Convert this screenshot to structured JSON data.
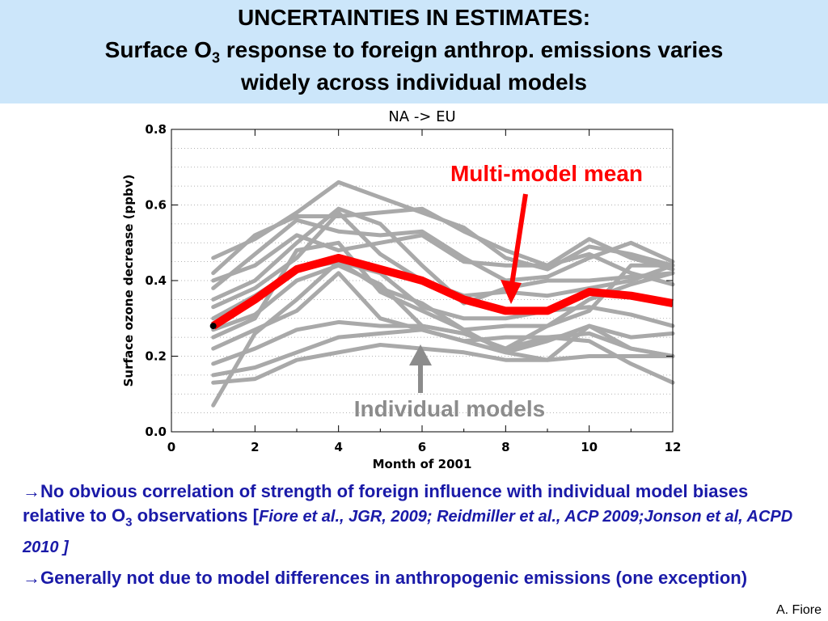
{
  "slide": {
    "title_line1": "UNCERTAINTIES IN ESTIMATES:",
    "title_line2_pre": "Surface O",
    "title_line2_sub": "3",
    "title_line2_post": " response to foreign anthrop. emissions varies",
    "title_line3": "widely across individual models",
    "bullet1_arrow": "→",
    "bullet1_text_a": "No obvious correlation of strength of foreign influence with individual model biases relative to O",
    "bullet1_sub": "3",
    "bullet1_text_b": " observations [",
    "bullet1_cite": "Fiore et al., JGR, 2009; Reidmiller et al., ACP 2009;Jonson et al, ACPD 2010 ]",
    "bullet2_arrow": "→",
    "bullet2_text": "Generally not due to model differences in anthropogenic emissions (one exception)",
    "credit": "A. Fiore"
  },
  "chart_data": {
    "type": "line",
    "title": "NA -> EU",
    "xlabel": "Month of 2001",
    "ylabel": "Surface ozone decrease (ppbv)",
    "xlim": [
      0,
      12
    ],
    "ylim": [
      0.0,
      0.8
    ],
    "x_ticks": [
      0,
      2,
      4,
      6,
      8,
      10,
      12
    ],
    "y_ticks": [
      "0.0",
      "0.2",
      "0.4",
      "0.6",
      "0.8"
    ],
    "x": [
      1,
      2,
      3,
      4,
      5,
      6,
      7,
      8,
      9,
      10,
      11,
      12
    ],
    "colors": {
      "models": "#a9a9a9",
      "mean": "#ff0000",
      "annotation_mean": "#ff0000",
      "annotation_models": "#8c8c8c"
    },
    "annotations": {
      "mean_label": "Multi-model mean",
      "models_label": "Individual models"
    },
    "mean": {
      "values": [
        0.28,
        0.35,
        0.43,
        0.46,
        0.43,
        0.4,
        0.35,
        0.32,
        0.32,
        0.37,
        0.36,
        0.34
      ]
    },
    "models": [
      {
        "values": [
          0.46,
          0.51,
          0.58,
          0.66,
          0.62,
          0.58,
          0.54,
          0.46,
          0.43,
          0.49,
          0.47,
          0.44
        ]
      },
      {
        "values": [
          0.42,
          0.52,
          0.57,
          0.57,
          0.58,
          0.59,
          0.53,
          0.48,
          0.44,
          0.51,
          0.46,
          0.43
        ]
      },
      {
        "values": [
          0.38,
          0.47,
          0.56,
          0.53,
          0.52,
          0.53,
          0.46,
          0.4,
          0.41,
          0.46,
          0.5,
          0.45
        ]
      },
      {
        "values": [
          0.4,
          0.44,
          0.52,
          0.48,
          0.5,
          0.52,
          0.45,
          0.44,
          0.44,
          0.47,
          0.42,
          0.39
        ]
      },
      {
        "values": [
          0.35,
          0.4,
          0.5,
          0.59,
          0.55,
          0.44,
          0.34,
          0.38,
          0.4,
          0.4,
          0.41,
          0.42
        ]
      },
      {
        "values": [
          0.33,
          0.38,
          0.46,
          0.58,
          0.47,
          0.4,
          0.36,
          0.37,
          0.36,
          0.38,
          0.4,
          0.44
        ]
      },
      {
        "values": [
          0.3,
          0.36,
          0.43,
          0.45,
          0.42,
          0.33,
          0.3,
          0.3,
          0.32,
          0.33,
          0.31,
          0.28
        ]
      },
      {
        "values": [
          0.27,
          0.31,
          0.4,
          0.44,
          0.39,
          0.28,
          0.26,
          0.22,
          0.28,
          0.35,
          0.39,
          0.42
        ]
      },
      {
        "values": [
          0.25,
          0.3,
          0.48,
          0.5,
          0.37,
          0.32,
          0.27,
          0.28,
          0.28,
          0.32,
          0.44,
          0.44
        ]
      },
      {
        "values": [
          0.22,
          0.27,
          0.32,
          0.42,
          0.3,
          0.27,
          0.24,
          0.21,
          0.24,
          0.28,
          0.22,
          0.2
        ]
      },
      {
        "values": [
          0.18,
          0.22,
          0.27,
          0.29,
          0.28,
          0.28,
          0.26,
          0.22,
          0.25,
          0.26,
          0.22,
          0.2
        ]
      },
      {
        "values": [
          0.15,
          0.17,
          0.21,
          0.25,
          0.26,
          0.27,
          0.24,
          0.25,
          0.25,
          0.24,
          0.18,
          0.13
        ]
      },
      {
        "values": [
          0.13,
          0.14,
          0.19,
          0.21,
          0.23,
          0.22,
          0.21,
          0.19,
          0.19,
          0.2,
          0.2,
          0.2
        ]
      },
      {
        "values": [
          0.07,
          0.26,
          0.35,
          0.45,
          0.38,
          0.34,
          0.27,
          0.21,
          0.19,
          0.28,
          0.25,
          0.26
        ]
      }
    ]
  }
}
